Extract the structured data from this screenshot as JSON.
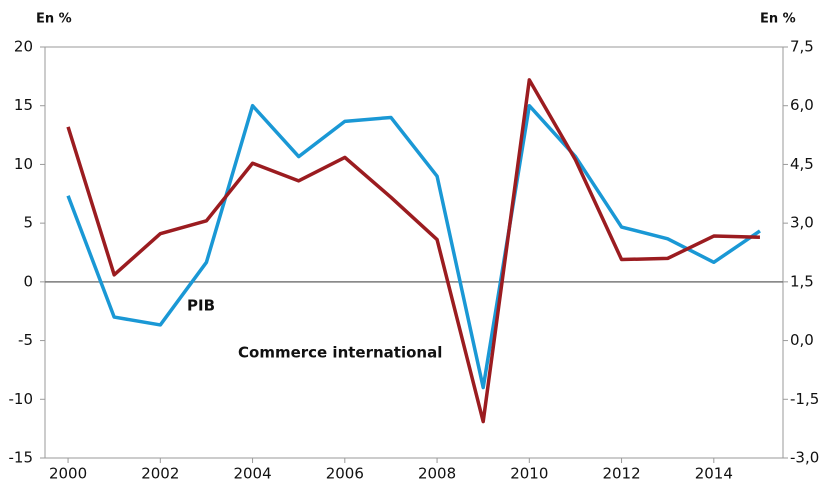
{
  "chart_data": {
    "type": "line",
    "y_label": "En %",
    "y2_label": "En %",
    "x": [
      2000,
      2001,
      2002,
      2003,
      2004,
      2005,
      2006,
      2007,
      2008,
      2009,
      2010,
      2011,
      2012,
      2013,
      2014,
      2015
    ],
    "xlim": [
      1999.5,
      2015.5
    ],
    "xticks": [
      2000,
      2002,
      2004,
      2006,
      2008,
      2010,
      2012,
      2014
    ],
    "ylim": [
      -15,
      20
    ],
    "yticks": [
      -15,
      -10,
      -5,
      0,
      5,
      10,
      15,
      20
    ],
    "y2lim": [
      -3,
      7.5
    ],
    "y2ticks": [
      {
        "value": -3,
        "label": "-3,0"
      },
      {
        "value": -1.5,
        "label": "-1,5"
      },
      {
        "value": 0,
        "label": "0,0"
      },
      {
        "value": 1.5,
        "label": "1,5"
      },
      {
        "value": 3,
        "label": "3,0"
      },
      {
        "value": 4.5,
        "label": "4,5"
      },
      {
        "value": 6,
        "label": "6,0"
      },
      {
        "value": 7.5,
        "label": "7,5"
      }
    ],
    "series": [
      {
        "name": "PIB",
        "color": "#1a98d5",
        "axis": "y2",
        "values": [
          3.7,
          0.6,
          0.4,
          2.0,
          6.0,
          4.7,
          5.6,
          5.7,
          4.2,
          -1.2,
          6.0,
          4.7,
          2.9,
          2.6,
          2.0,
          2.8
        ]
      },
      {
        "name": "Commerce international",
        "color": "#9b1c20",
        "axis": "y",
        "values": [
          13.2,
          0.6,
          4.1,
          5.2,
          10.1,
          8.6,
          10.6,
          7.2,
          3.6,
          -11.9,
          17.2,
          10.4,
          1.9,
          2.0,
          3.9,
          3.8
        ]
      }
    ]
  }
}
